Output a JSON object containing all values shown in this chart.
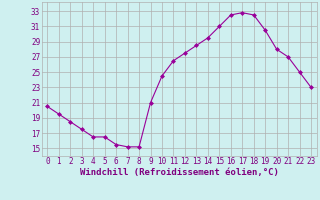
{
  "x": [
    0,
    1,
    2,
    3,
    4,
    5,
    6,
    7,
    8,
    9,
    10,
    11,
    12,
    13,
    14,
    15,
    16,
    17,
    18,
    19,
    20,
    21,
    22,
    23
  ],
  "y": [
    20.5,
    19.5,
    18.5,
    17.5,
    16.5,
    16.5,
    15.5,
    15.2,
    15.2,
    21.0,
    24.5,
    26.5,
    27.5,
    28.5,
    29.5,
    31.0,
    32.5,
    32.8,
    32.5,
    30.5,
    28.0,
    27.0,
    25.0,
    23.0
  ],
  "line_color": "#990099",
  "marker": "D",
  "marker_size": 2.0,
  "bg_color": "#cff0f0",
  "grid_color": "#b0b0b0",
  "xlabel": "Windchill (Refroidissement éolien,°C)",
  "ylabel_ticks": [
    15,
    17,
    19,
    21,
    23,
    25,
    27,
    29,
    31,
    33
  ],
  "ylim": [
    14.0,
    34.2
  ],
  "xlim": [
    -0.5,
    23.5
  ],
  "xticks": [
    0,
    1,
    2,
    3,
    4,
    5,
    6,
    7,
    8,
    9,
    10,
    11,
    12,
    13,
    14,
    15,
    16,
    17,
    18,
    19,
    20,
    21,
    22,
    23
  ],
  "tick_label_size": 5.5,
  "xlabel_size": 6.5,
  "title_color": "#800080"
}
